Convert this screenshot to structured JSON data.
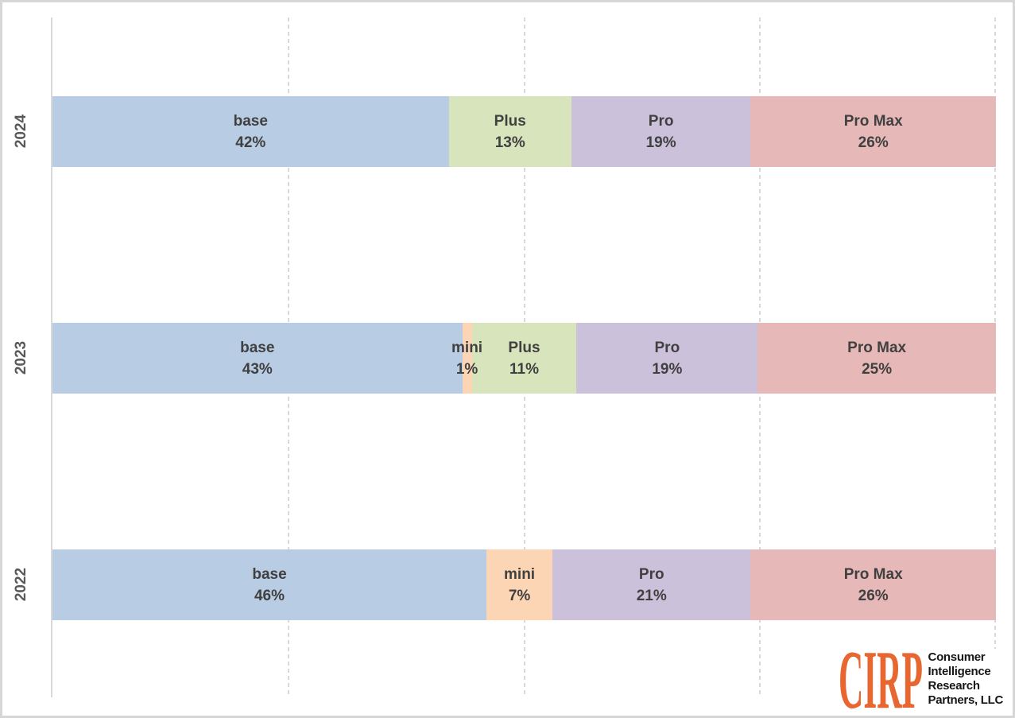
{
  "chart_data": {
    "type": "bar",
    "subtype": "horizontal-stacked-100pct",
    "title": "",
    "xlabel": "",
    "ylabel": "",
    "unit": "%",
    "categories": [
      "2024",
      "2023",
      "2022"
    ],
    "gridlines_pct": [
      25,
      50,
      75,
      100
    ],
    "legend": "none (labels inside segments)",
    "palette": {
      "base": "#B8CCE4",
      "mini": "#FCD5B4",
      "Plus": "#D8E4BC",
      "Pro": "#CCC1DA",
      "Pro Max": "#E6B8B7"
    },
    "rows": [
      {
        "year": "2024",
        "segments": [
          {
            "name": "base",
            "value": 42,
            "pct_label": "42%",
            "color": "#B8CCE4"
          },
          {
            "name": "Plus",
            "value": 13,
            "pct_label": "13%",
            "color": "#D8E4BC"
          },
          {
            "name": "Pro",
            "value": 19,
            "pct_label": "19%",
            "color": "#CCC1DA"
          },
          {
            "name": "Pro Max",
            "value": 26,
            "pct_label": "26%",
            "color": "#E6B8B7"
          }
        ]
      },
      {
        "year": "2023",
        "segments": [
          {
            "name": "base",
            "value": 43,
            "pct_label": "43%",
            "color": "#B8CCE4"
          },
          {
            "name": "mini",
            "value": 1,
            "pct_label": "1%",
            "color": "#FCD5B4"
          },
          {
            "name": "Plus",
            "value": 11,
            "pct_label": "11%",
            "color": "#D8E4BC"
          },
          {
            "name": "Pro",
            "value": 19,
            "pct_label": "19%",
            "color": "#CCC1DA"
          },
          {
            "name": "Pro Max",
            "value": 25,
            "pct_label": "25%",
            "color": "#E6B8B7"
          }
        ]
      },
      {
        "year": "2022",
        "segments": [
          {
            "name": "base",
            "value": 46,
            "pct_label": "46%",
            "color": "#B8CCE4"
          },
          {
            "name": "mini",
            "value": 7,
            "pct_label": "7%",
            "color": "#FCD5B4"
          },
          {
            "name": "Pro",
            "value": 21,
            "pct_label": "21%",
            "color": "#CCC1DA"
          },
          {
            "name": "Pro Max",
            "value": 26,
            "pct_label": "26%",
            "color": "#E6B8B7"
          }
        ]
      }
    ]
  },
  "logo": {
    "acronym": "CIRP",
    "lines": [
      "Consumer",
      "Intelligence",
      "Research",
      "Partners, LLC"
    ],
    "accent_color": "#E8662F",
    "text_color": "#161616"
  }
}
